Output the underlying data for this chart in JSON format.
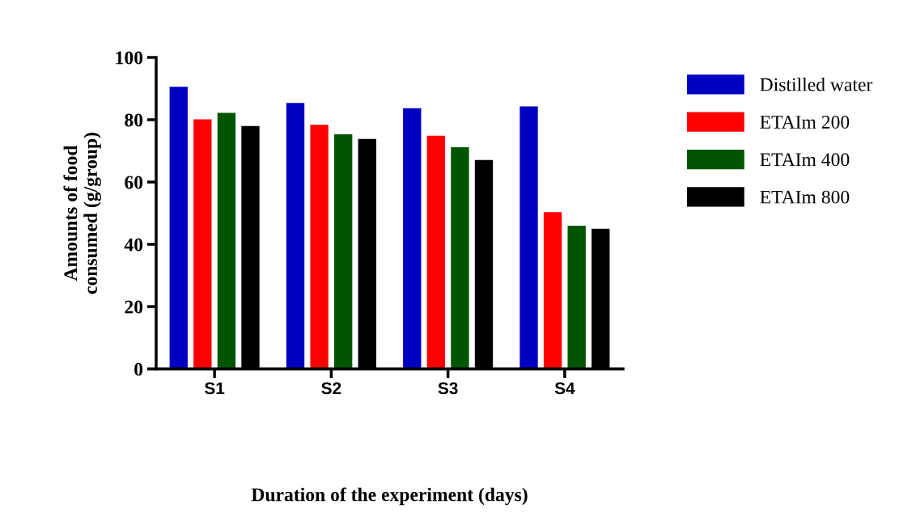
{
  "chart_data": {
    "type": "bar",
    "xlabel": "Duration of the experiment (days)",
    "ylabel": "Amounts of food\nconsumed (g/group)",
    "categories": [
      "S1",
      "S2",
      "S3",
      "S4"
    ],
    "series": [
      {
        "name": "Distilled water",
        "color": "#0000c0",
        "values": [
          90.6,
          85.4,
          83.7,
          84.3
        ]
      },
      {
        "name": "ETAIm 200",
        "color": "#ff0000",
        "values": [
          80.1,
          78.4,
          74.9,
          50.3
        ]
      },
      {
        "name": "ETAIm 400",
        "color": "#005500",
        "values": [
          82.2,
          75.3,
          71.2,
          46.0
        ]
      },
      {
        "name": "ETAIm 800",
        "color": "#000000",
        "values": [
          78.0,
          73.8,
          67.1,
          45.0
        ]
      }
    ],
    "ylim": [
      0,
      100
    ],
    "yticks": [
      0,
      20,
      40,
      60,
      80,
      100
    ],
    "grid": false,
    "legend": "top right"
  }
}
